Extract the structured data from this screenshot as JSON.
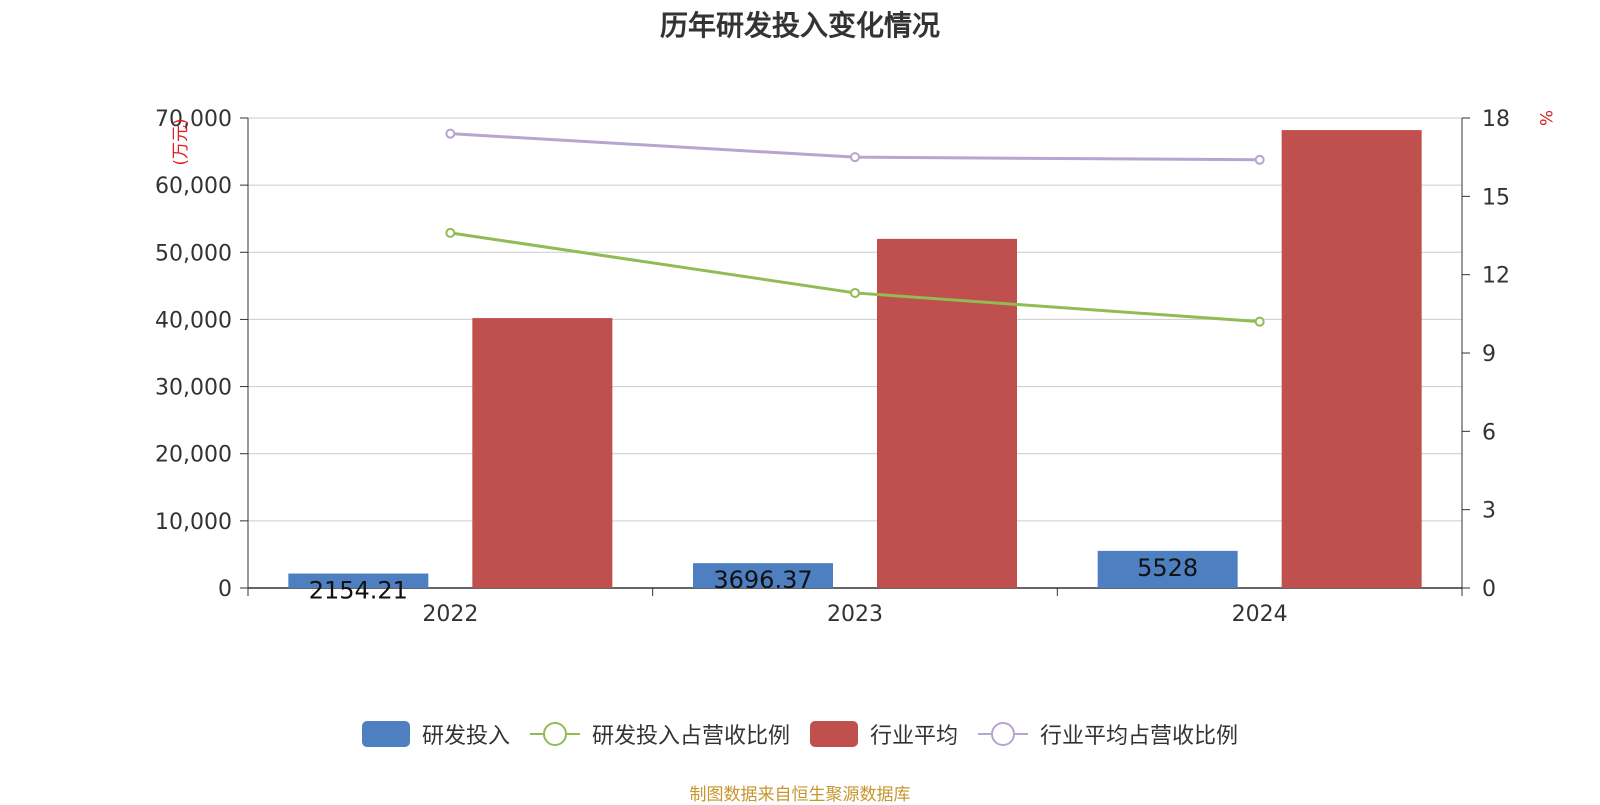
{
  "title": "历年研发投入变化情况",
  "source": "制图数据来自恒生聚源数据库",
  "chart_data": {
    "type": "bar",
    "categories": [
      "2022",
      "2023",
      "2024"
    ],
    "y_left": {
      "unit": "(万元)",
      "ylim": [
        0,
        70000
      ],
      "ticks": [
        "0",
        "10,000",
        "20,000",
        "30,000",
        "40,000",
        "50,000",
        "60,000",
        "70,000"
      ]
    },
    "y_right": {
      "unit": "%",
      "ylim": [
        0,
        18
      ],
      "ticks": [
        "0",
        "3",
        "6",
        "9",
        "12",
        "15",
        "18"
      ]
    },
    "series": [
      {
        "name": "研发投入",
        "type": "bar",
        "axis": "left",
        "color": "#4e7fc0",
        "values": [
          2154.21,
          3696.37,
          5528
        ],
        "labels": [
          "2154.21",
          "3696.37",
          "5528"
        ]
      },
      {
        "name": "研发投入占营收比例",
        "type": "line",
        "axis": "right",
        "color": "#91bb53",
        "values": [
          13.6,
          11.3,
          10.2
        ]
      },
      {
        "name": "行业平均",
        "type": "bar",
        "axis": "left",
        "color": "#c0504d",
        "values": [
          40200,
          52000,
          68200
        ]
      },
      {
        "name": "行业平均占营收比例",
        "type": "line",
        "axis": "right",
        "color": "#b6a5cf",
        "values": [
          17.4,
          16.5,
          16.4
        ]
      }
    ],
    "grid": true,
    "legend": "bottom"
  }
}
